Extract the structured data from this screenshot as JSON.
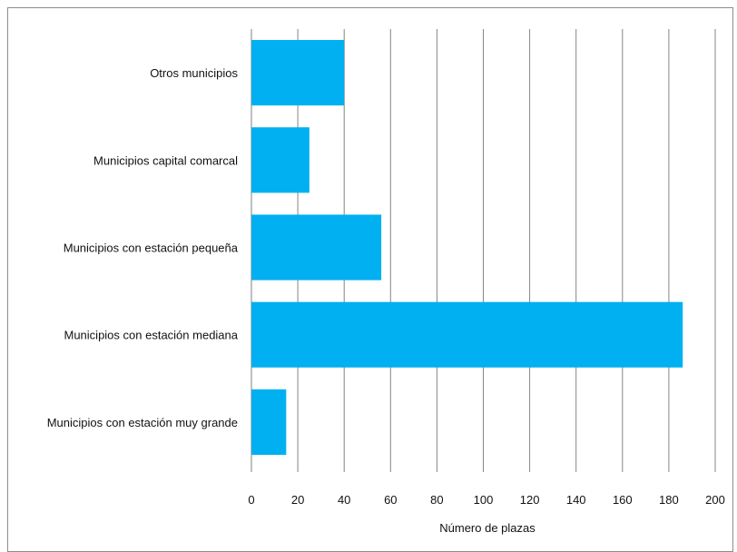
{
  "chart_data": {
    "type": "bar",
    "orientation": "horizontal",
    "categories": [
      "Otros municipios",
      "Municipios capital comarcal",
      "Municipios con estación pequeña",
      "Municipios con estación mediana",
      "Municipios con estación muy grande"
    ],
    "values": [
      40,
      25,
      56,
      186,
      15
    ],
    "xlabel": "Número de plazas",
    "ylabel": "",
    "xlim": [
      0,
      200
    ],
    "xticks": [
      0,
      20,
      40,
      60,
      80,
      100,
      120,
      140,
      160,
      180,
      200
    ],
    "grid": true,
    "bar_color": "#00B0F0",
    "grid_color": "#868686"
  }
}
